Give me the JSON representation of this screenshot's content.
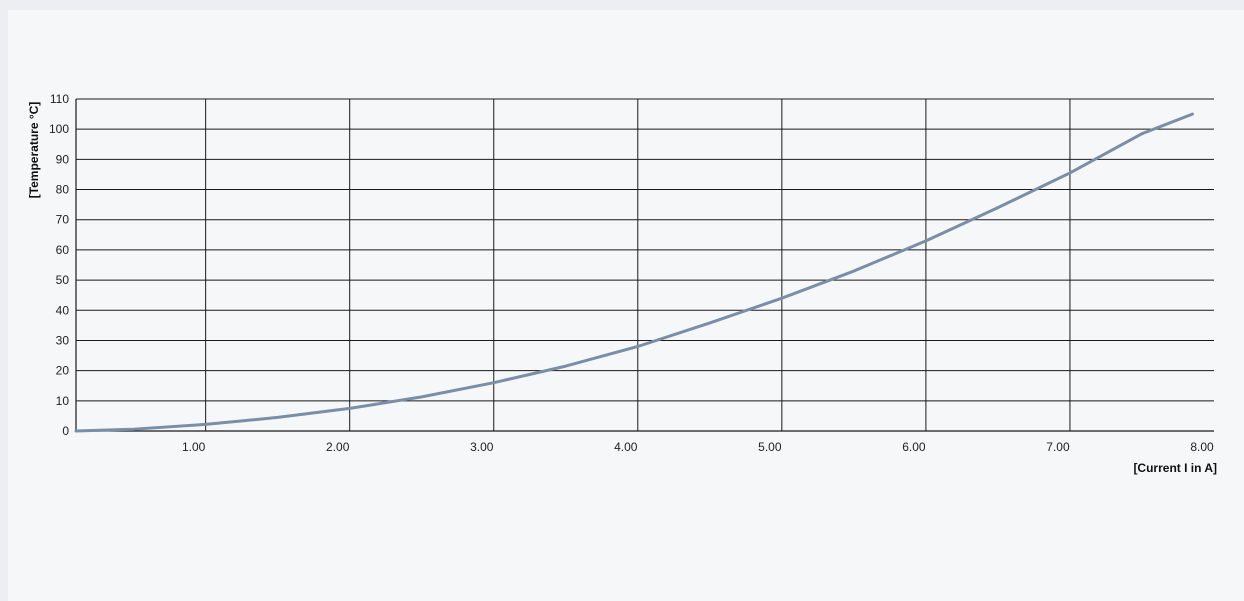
{
  "chart_data": {
    "type": "line",
    "xlabel": "[Current I in A]",
    "ylabel": "[Temperature °C]",
    "xlim": [
      0.1,
      8.0
    ],
    "ylim": [
      0,
      110
    ],
    "x_ticks": [
      "1.00",
      "2.00",
      "3.00",
      "4.00",
      "5.00",
      "6.00",
      "7.00",
      "8.00"
    ],
    "y_ticks": [
      "0",
      "10",
      "20",
      "30",
      "40",
      "50",
      "60",
      "70",
      "80",
      "90",
      "100",
      "110"
    ],
    "grid": true,
    "series": [
      {
        "color": "#7a8ea5",
        "x": [
          0.1,
          0.5,
          1.0,
          1.5,
          2.0,
          2.5,
          3.0,
          3.5,
          4.0,
          4.5,
          5.0,
          5.5,
          6.0,
          6.5,
          7.0,
          7.5,
          7.85
        ],
        "y": [
          0,
          0.6,
          2.2,
          4.5,
          7.5,
          11.3,
          16,
          21.5,
          28,
          35.8,
          44,
          53,
          63,
          74,
          85.5,
          98.5,
          105
        ]
      }
    ]
  }
}
